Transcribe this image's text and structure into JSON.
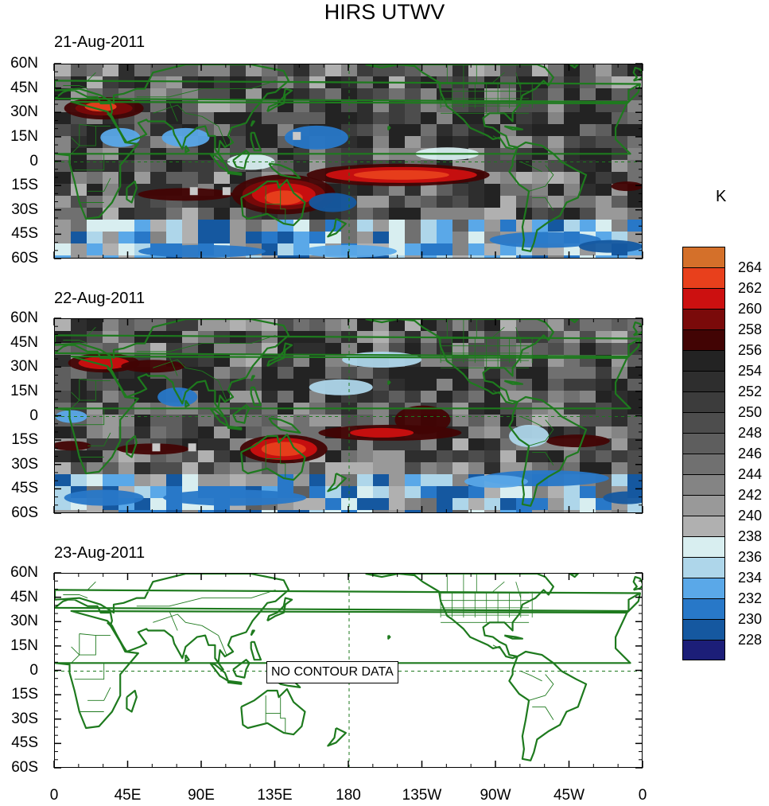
{
  "title": "HIRS UTWV",
  "panels": [
    {
      "date": "21-Aug-2011",
      "has_data": true
    },
    {
      "date": "22-Aug-2011",
      "has_data": true
    },
    {
      "date": "23-Aug-2011",
      "has_data": false,
      "message": "NO CONTOUR DATA"
    }
  ],
  "lat_labels": [
    "60N",
    "45N",
    "30N",
    "15N",
    "0",
    "15S",
    "30S",
    "45S",
    "60S"
  ],
  "lon_labels": [
    "0",
    "45E",
    "90E",
    "135E",
    "180",
    "135W",
    "90W",
    "45W",
    "0"
  ],
  "legend": {
    "unit": "K",
    "levels": [
      "264",
      "262",
      "260",
      "258",
      "256",
      "254",
      "252",
      "250",
      "248",
      "246",
      "244",
      "242",
      "240",
      "238",
      "236",
      "234",
      "232",
      "230",
      "228"
    ],
    "colors": [
      "#d4702a",
      "#e8401c",
      "#cc1010",
      "#7a0a0a",
      "#420404",
      "#232323",
      "#2e2e2e",
      "#3c3c3c",
      "#4d4d4d",
      "#5e5e5e",
      "#707070",
      "#848484",
      "#999999",
      "#b0b0b0",
      "#d8eef0",
      "#aed6ea",
      "#5aa8e8",
      "#2878c8",
      "#1558a0",
      "#1c1e78"
    ]
  },
  "colors": {
    "coastline": "#1e7a1e",
    "grid": "#1e7a1e"
  }
}
